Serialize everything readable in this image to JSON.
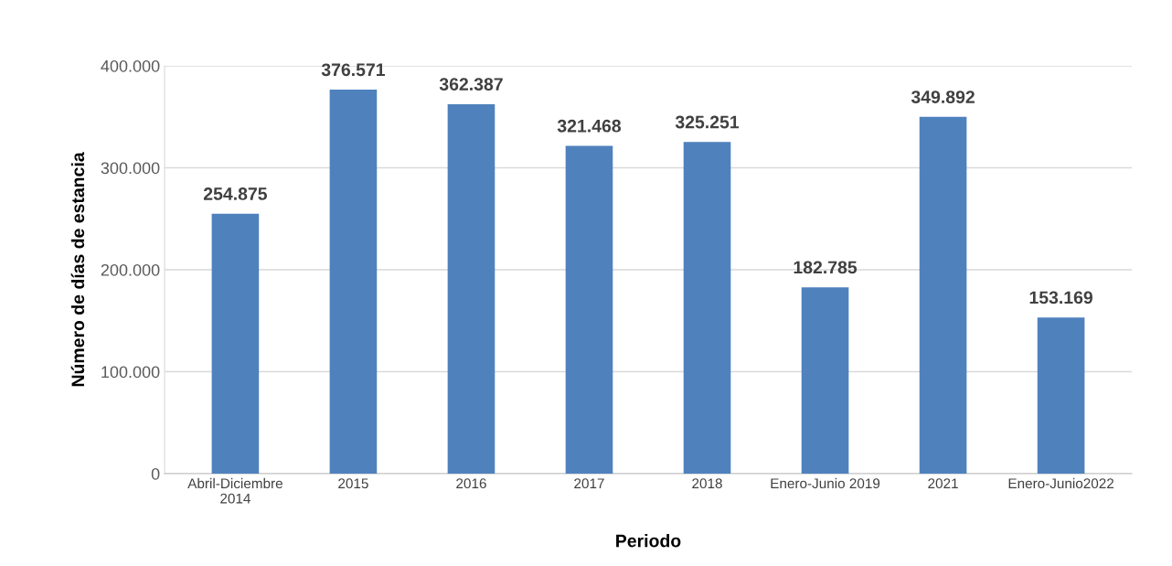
{
  "chart_data": {
    "type": "bar",
    "xlabel": "Periodo",
    "ylabel": "Número de días de estancia",
    "categories": [
      "Abril-Diciembre\n2014",
      "2015",
      "2016",
      "2017",
      "2018",
      "Enero-Junio 2019",
      "2021",
      "Enero-Junio2022"
    ],
    "values": [
      254875,
      376571,
      362387,
      321468,
      325251,
      182785,
      349892,
      153169
    ],
    "value_labels": [
      "254.875",
      "376.571",
      "362.387",
      "321.468",
      "325.251",
      "182.785",
      "349.892",
      "153.169"
    ],
    "color": "#4f81bd",
    "ylim": [
      0,
      400000
    ],
    "yticks": [
      {
        "value": 0,
        "label": "0"
      },
      {
        "value": 100000,
        "label": "100.000"
      },
      {
        "value": 200000,
        "label": "200.000"
      },
      {
        "value": 300000,
        "label": "300.000"
      },
      {
        "value": 400000,
        "label": "400.000"
      }
    ],
    "grid": "y",
    "legend": false
  }
}
